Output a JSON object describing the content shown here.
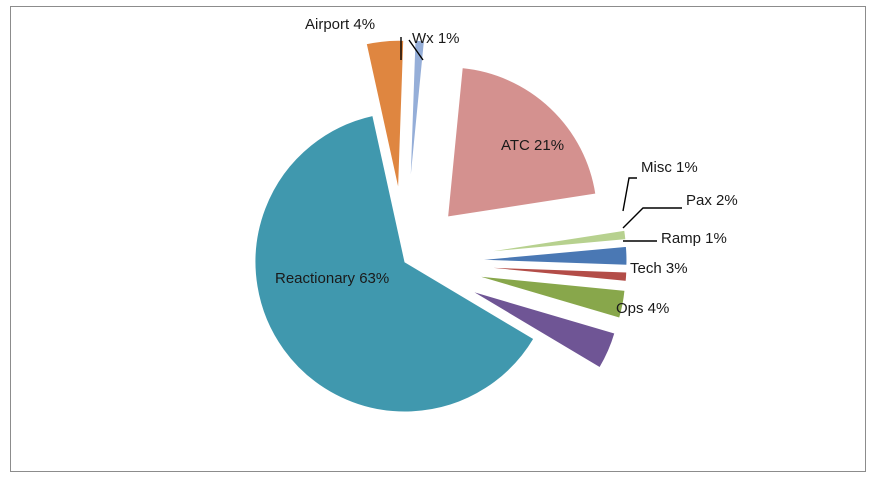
{
  "chart_data": {
    "type": "pie",
    "title": "",
    "legend": "none",
    "exploded": true,
    "slices": [
      {
        "name": "Wx",
        "value": 1,
        "label": "Wx 1%",
        "color": "#95aed8"
      },
      {
        "name": "ATC",
        "value": 21,
        "label": "ATC 21%",
        "color": "#d4918f"
      },
      {
        "name": "Misc",
        "value": 1,
        "label": "Misc 1%",
        "color": "#b7d18f"
      },
      {
        "name": "Pax",
        "value": 2,
        "label": "Pax 2%",
        "color": "#4a78b4"
      },
      {
        "name": "Ramp",
        "value": 1,
        "label": "Ramp 1%",
        "color": "#b34d48"
      },
      {
        "name": "Tech",
        "value": 3,
        "label": "Tech 3%",
        "color": "#88a74b"
      },
      {
        "name": "Ops",
        "value": 4,
        "label": "Ops 4%",
        "color": "#6f5595"
      },
      {
        "name": "Reactionary",
        "value": 63,
        "label": "Reactionary 63%",
        "color": "#4098ae"
      },
      {
        "name": "Airport",
        "value": 4,
        "label": "Airport 4%",
        "color": "#df8640"
      }
    ]
  }
}
